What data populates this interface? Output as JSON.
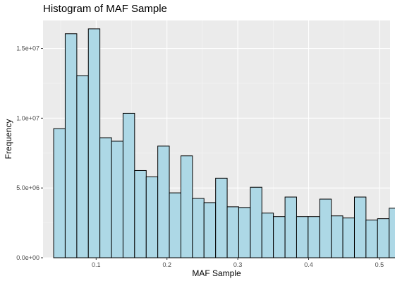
{
  "chart_data": {
    "type": "bar",
    "subtype": "histogram",
    "title": "Histogram of MAF Sample",
    "xlabel": "MAF Sample",
    "ylabel": "Frequency",
    "xlim": [
      0.025,
      0.515
    ],
    "ylim": [
      0,
      17000000
    ],
    "bin_width": 0.01633,
    "x_ticks": [
      {
        "value": 0.1,
        "label": "0.1"
      },
      {
        "value": 0.2,
        "label": "0.2"
      },
      {
        "value": 0.3,
        "label": "0.3"
      },
      {
        "value": 0.4,
        "label": "0.4"
      },
      {
        "value": 0.5,
        "label": "0.5"
      }
    ],
    "y_ticks": [
      {
        "value": 0,
        "label": "0.0e+00"
      },
      {
        "value": 5000000,
        "label": "5.0e+06"
      },
      {
        "value": 10000000,
        "label": "1.0e+07"
      },
      {
        "value": 15000000,
        "label": "1.5e+07"
      }
    ],
    "bins": [
      {
        "x0": 0.04,
        "x1": 0.0563,
        "count": 9250000
      },
      {
        "x0": 0.0563,
        "x1": 0.0727,
        "count": 16050000
      },
      {
        "x0": 0.0727,
        "x1": 0.089,
        "count": 13050000
      },
      {
        "x0": 0.089,
        "x1": 0.1053,
        "count": 16400000
      },
      {
        "x0": 0.1053,
        "x1": 0.1217,
        "count": 8600000
      },
      {
        "x0": 0.1217,
        "x1": 0.138,
        "count": 8350000
      },
      {
        "x0": 0.138,
        "x1": 0.1543,
        "count": 10350000
      },
      {
        "x0": 0.1543,
        "x1": 0.1707,
        "count": 6250000
      },
      {
        "x0": 0.1707,
        "x1": 0.187,
        "count": 5800000
      },
      {
        "x0": 0.187,
        "x1": 0.2033,
        "count": 8000000
      },
      {
        "x0": 0.2033,
        "x1": 0.2197,
        "count": 4650000
      },
      {
        "x0": 0.2197,
        "x1": 0.236,
        "count": 7300000
      },
      {
        "x0": 0.236,
        "x1": 0.2523,
        "count": 4250000
      },
      {
        "x0": 0.2523,
        "x1": 0.2687,
        "count": 3950000
      },
      {
        "x0": 0.2687,
        "x1": 0.285,
        "count": 5700000
      },
      {
        "x0": 0.285,
        "x1": 0.3013,
        "count": 3650000
      },
      {
        "x0": 0.3013,
        "x1": 0.3177,
        "count": 3600000
      },
      {
        "x0": 0.3177,
        "x1": 0.334,
        "count": 5050000
      },
      {
        "x0": 0.334,
        "x1": 0.3503,
        "count": 3200000
      },
      {
        "x0": 0.3503,
        "x1": 0.3667,
        "count": 2950000
      },
      {
        "x0": 0.3667,
        "x1": 0.383,
        "count": 4350000
      },
      {
        "x0": 0.383,
        "x1": 0.3993,
        "count": 2950000
      },
      {
        "x0": 0.3993,
        "x1": 0.4157,
        "count": 2950000
      },
      {
        "x0": 0.4157,
        "x1": 0.432,
        "count": 4200000
      },
      {
        "x0": 0.432,
        "x1": 0.4483,
        "count": 3000000
      },
      {
        "x0": 0.4483,
        "x1": 0.4647,
        "count": 2850000
      },
      {
        "x0": 0.4647,
        "x1": 0.481,
        "count": 4350000
      },
      {
        "x0": 0.481,
        "x1": 0.4973,
        "count": 2700000
      },
      {
        "x0": 0.4973,
        "x1": 0.5137,
        "count": 2800000
      },
      {
        "x0": 0.5137,
        "x1": 0.53,
        "count": 3550000
      }
    ],
    "grid": true,
    "legend": "none",
    "colors": {
      "bar_fill": "#add8e6",
      "bar_stroke": "#000000",
      "panel_background": "#ebebeb",
      "grid_major": "#ffffff",
      "grid_minor": "#f5f5f5"
    }
  }
}
